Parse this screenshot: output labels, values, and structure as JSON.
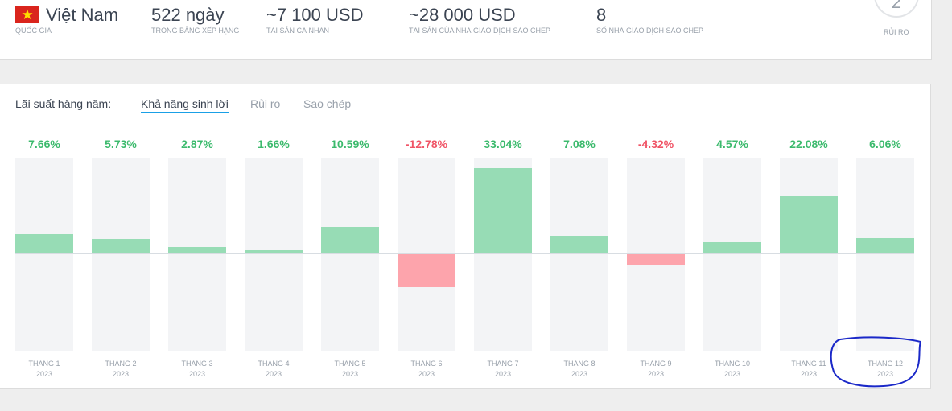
{
  "header": {
    "country": {
      "name": "Việt Nam",
      "label": "Quốc gia",
      "flag_icon": "vietnam-flag-icon"
    },
    "days": {
      "value": "522 ngày",
      "label": "Trong bảng xếp hạng"
    },
    "personal_assets": {
      "value": "~7 100 USD",
      "label": "Tài sản cá nhân"
    },
    "copier_assets": {
      "value": "~28 000 USD",
      "label": "Tài sản của nhà giao dịch sao chép"
    },
    "copiers": {
      "value": "8",
      "label": "Số nhà giao dịch sao chép"
    },
    "risk": {
      "value": "2",
      "label": "Rủi ro"
    }
  },
  "tabs": {
    "lead": "Lãi suất hàng năm:",
    "items": [
      {
        "label": "Khả năng sinh lời",
        "active": true
      },
      {
        "label": "Rủi ro",
        "active": false
      },
      {
        "label": "Sao chép",
        "active": false
      }
    ]
  },
  "colors": {
    "positive": "#3cba6d",
    "negative": "#f05466",
    "bar_positive": "#97dcb5",
    "bar_negative": "#fda4ac",
    "tab_underline": "#1aa0e6",
    "annotation": "#1a28c8"
  },
  "chart_data": {
    "type": "bar",
    "categories": [
      "THÁNG 1 2023",
      "THÁNG 2 2023",
      "THÁNG 3 2023",
      "THÁNG 4 2023",
      "THÁNG 5 2023",
      "THÁNG 6 2023",
      "THÁNG 7 2023",
      "THÁNG 8 2023",
      "THÁNG 9 2023",
      "THÁNG 10 2023",
      "THÁNG 11 2023",
      "THÁNG 12 2023"
    ],
    "values": [
      7.66,
      5.73,
      2.87,
      1.66,
      10.59,
      -12.78,
      33.04,
      7.08,
      -4.32,
      4.57,
      22.08,
      6.06
    ],
    "ylim": [
      -37,
      37
    ]
  },
  "months": [
    {
      "month": "THÁNG 1",
      "year": "2023",
      "pct": "7.66%"
    },
    {
      "month": "THÁNG 2",
      "year": "2023",
      "pct": "5.73%"
    },
    {
      "month": "THÁNG 3",
      "year": "2023",
      "pct": "2.87%"
    },
    {
      "month": "THÁNG 4",
      "year": "2023",
      "pct": "1.66%"
    },
    {
      "month": "THÁNG 5",
      "year": "2023",
      "pct": "10.59%"
    },
    {
      "month": "THÁNG 6",
      "year": "2023",
      "pct": "-12.78%"
    },
    {
      "month": "THÁNG 7",
      "year": "2023",
      "pct": "33.04%"
    },
    {
      "month": "THÁNG 8",
      "year": "2023",
      "pct": "7.08%"
    },
    {
      "month": "THÁNG 9",
      "year": "2023",
      "pct": "-4.32%"
    },
    {
      "month": "THÁNG 10",
      "year": "2023",
      "pct": "4.57%"
    },
    {
      "month": "THÁNG 11",
      "year": "2023",
      "pct": "22.08%"
    },
    {
      "month": "THÁNG 12",
      "year": "2023",
      "pct": "6.06%"
    }
  ]
}
